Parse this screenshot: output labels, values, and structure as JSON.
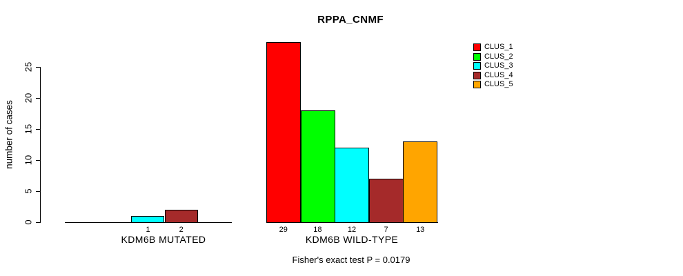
{
  "title": "RPPA_CNMF",
  "caption": "Fisher's exact test P = 0.0179",
  "chart_data": {
    "type": "bar",
    "title": "RPPA_CNMF",
    "xlabel": "",
    "ylabel": "number of cases",
    "ylim": [
      0,
      25
    ],
    "yticks": [
      0,
      5,
      10,
      15,
      20,
      25
    ],
    "grid": false,
    "legend_position": "right",
    "legend": [
      {
        "label": "CLUS_1",
        "color": "#FF0000"
      },
      {
        "label": "CLUS_2",
        "color": "#00FF00"
      },
      {
        "label": "CLUS_3",
        "color": "#00FFFF"
      },
      {
        "label": "CLUS_4",
        "color": "#A52A2A"
      },
      {
        "label": "CLUS_5",
        "color": "#FFA500"
      }
    ],
    "groups": [
      {
        "label": "KDM6B MUTATED",
        "series": [
          "CLUS_1",
          "CLUS_2",
          "CLUS_3",
          "CLUS_4",
          "CLUS_5"
        ],
        "values": [
          0,
          0,
          1,
          2,
          0
        ],
        "bar_labels": [
          "",
          "",
          "1",
          "2",
          ""
        ]
      },
      {
        "label": "KDM6B WILD-TYPE",
        "series": [
          "CLUS_1",
          "CLUS_2",
          "CLUS_3",
          "CLUS_4",
          "CLUS_5"
        ],
        "values": [
          29,
          18,
          12,
          7,
          13
        ],
        "bar_labels": [
          "29",
          "18",
          "12",
          "7",
          "13"
        ]
      }
    ],
    "caption": "Fisher's exact test P = 0.0179"
  }
}
